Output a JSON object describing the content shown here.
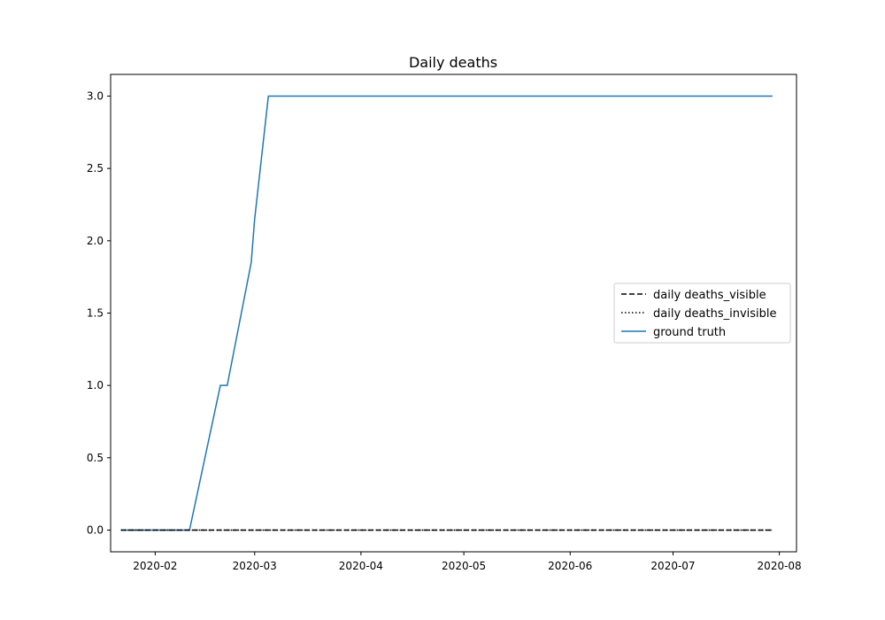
{
  "chart_data": {
    "type": "line",
    "title": "Daily deaths",
    "xlabel": "",
    "ylabel": "",
    "x_axis": "date",
    "xlim": [
      "2020-01-19",
      "2020-08-06"
    ],
    "ylim": [
      -0.15,
      3.15
    ],
    "x_ticks": [
      "2020-02-01",
      "2020-03-01",
      "2020-04-01",
      "2020-05-01",
      "2020-06-01",
      "2020-07-01",
      "2020-08-01"
    ],
    "x_tick_labels": [
      "2020-02",
      "2020-03",
      "2020-04",
      "2020-05",
      "2020-06",
      "2020-07",
      "2020-08"
    ],
    "y_ticks": [
      0.0,
      0.5,
      1.0,
      1.5,
      2.0,
      2.5,
      3.0
    ],
    "y_tick_labels": [
      "0.0",
      "0.5",
      "1.0",
      "1.5",
      "2.0",
      "2.5",
      "3.0"
    ],
    "grid": false,
    "legend_position": "center-right",
    "series": [
      {
        "name": "daily deaths_visible",
        "style": "dashed",
        "color": "#000000",
        "points": [
          [
            "2020-01-22",
            0
          ],
          [
            "2020-07-30",
            0
          ]
        ]
      },
      {
        "name": "daily deaths_invisible",
        "style": "dotted",
        "color": "#000000",
        "points": [
          [
            "2020-01-22",
            0
          ],
          [
            "2020-07-30",
            0
          ]
        ]
      },
      {
        "name": "ground truth",
        "style": "solid",
        "color": "#1f77b4",
        "points": [
          [
            "2020-01-22",
            0
          ],
          [
            "2020-02-11",
            0
          ],
          [
            "2020-02-20",
            1.0
          ],
          [
            "2020-02-22",
            1.0
          ],
          [
            "2020-02-29",
            1.85
          ],
          [
            "2020-03-01",
            2.15
          ],
          [
            "2020-03-05",
            3.0
          ],
          [
            "2020-07-30",
            3.0
          ]
        ]
      }
    ]
  }
}
